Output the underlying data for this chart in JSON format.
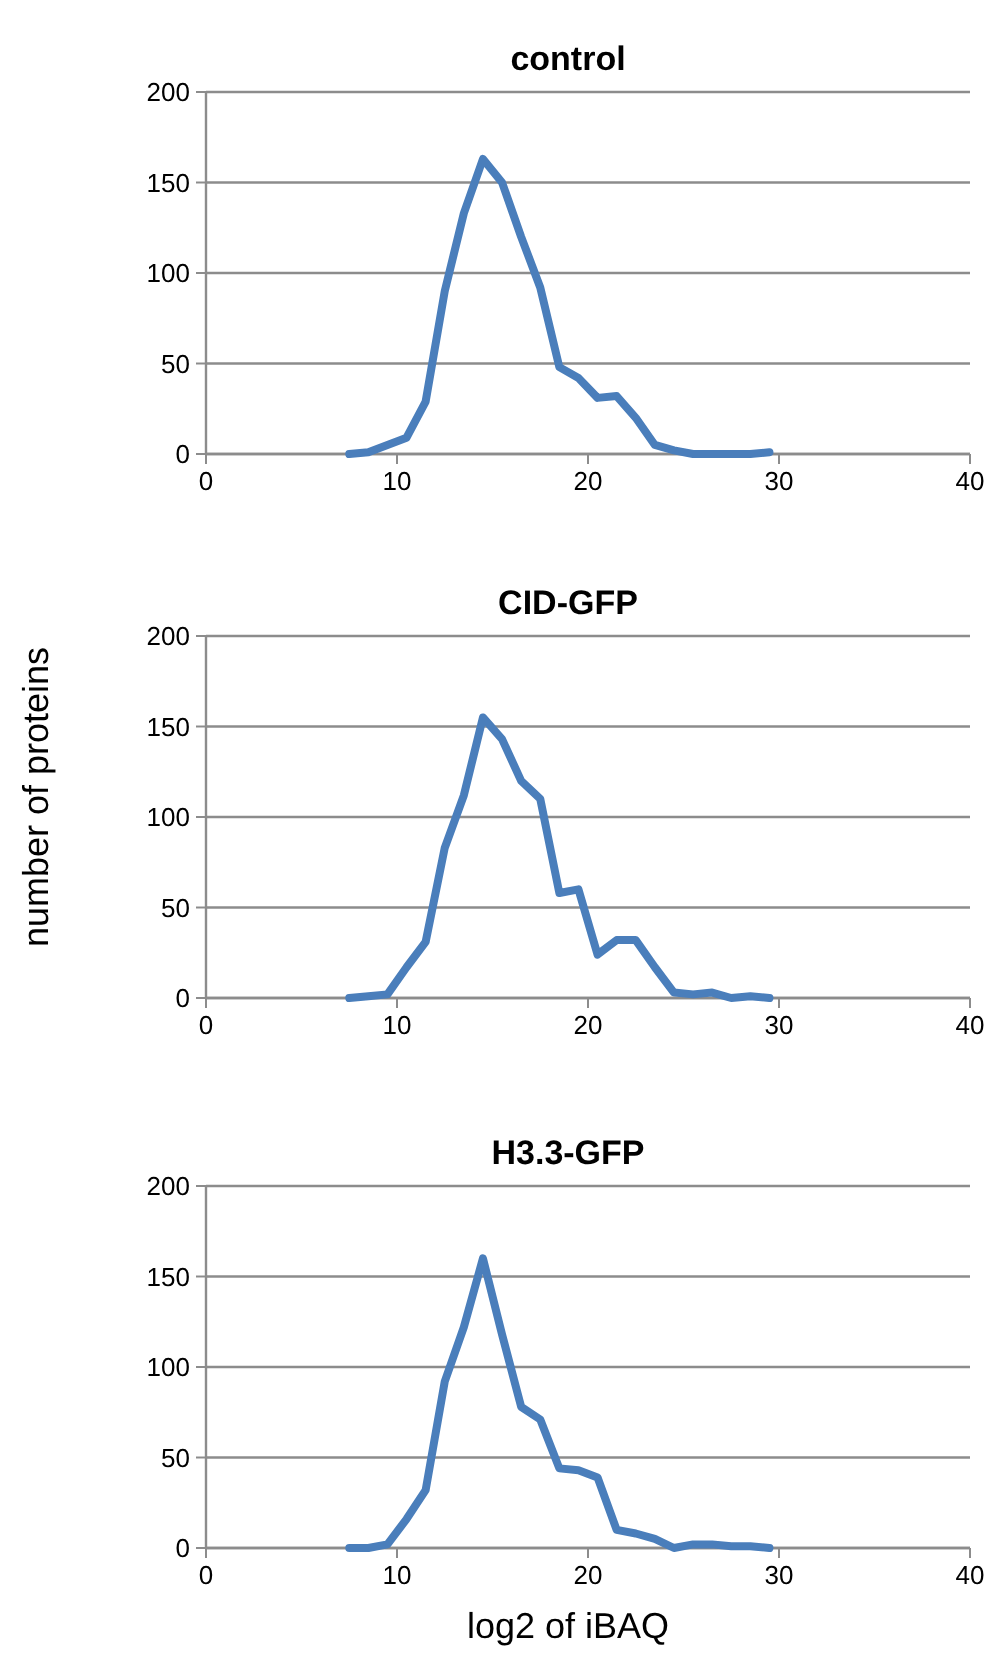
{
  "chart_data": [
    {
      "type": "line",
      "title": "control",
      "x": [
        7.5,
        8.5,
        9.5,
        10.5,
        11.5,
        12.5,
        13.5,
        14.5,
        15.5,
        16.5,
        17.5,
        18.5,
        19.5,
        20.5,
        21.5,
        22.5,
        23.5,
        24.5,
        25.5,
        26.5,
        27.5,
        28.5,
        29.5
      ],
      "series": [
        {
          "color": "#4a7ebb",
          "values": [
            0,
            1,
            5,
            9,
            29,
            90,
            133,
            163,
            150,
            120,
            92,
            48,
            42,
            31,
            32,
            20,
            5,
            2,
            0,
            0,
            0,
            0,
            1
          ]
        }
      ],
      "xlim": [
        0,
        40
      ],
      "xticks": [
        0,
        10,
        20,
        30,
        40
      ],
      "ylim": [
        0,
        200
      ],
      "yticks": [
        0,
        50,
        100,
        150,
        200
      ],
      "grid": "y",
      "marker": "none",
      "line_style": "solid"
    },
    {
      "type": "line",
      "title": "CID-GFP",
      "ylabel": "number of proteins",
      "x": [
        7.5,
        8.5,
        9.5,
        10.5,
        11.5,
        12.5,
        13.5,
        14.5,
        15.5,
        16.5,
        17.5,
        18.5,
        19.5,
        20.5,
        21.5,
        22.5,
        23.5,
        24.5,
        25.5,
        26.5,
        27.5,
        28.5,
        29.5
      ],
      "series": [
        {
          "color": "#4a7ebb",
          "values": [
            0,
            1,
            2,
            17,
            31,
            83,
            112,
            155,
            143,
            120,
            110,
            58,
            60,
            24,
            32,
            32,
            17,
            3,
            2,
            3,
            0,
            1,
            0
          ]
        }
      ],
      "xlim": [
        0,
        40
      ],
      "xticks": [
        0,
        10,
        20,
        30,
        40
      ],
      "ylim": [
        0,
        200
      ],
      "yticks": [
        0,
        50,
        100,
        150,
        200
      ],
      "grid": "y",
      "marker": "none",
      "line_style": "solid"
    },
    {
      "type": "line",
      "title": "H3.3-GFP",
      "xlabel": "log2 of iBAQ",
      "x": [
        7.5,
        8.5,
        9.5,
        10.5,
        11.5,
        12.5,
        13.5,
        14.5,
        15.5,
        16.5,
        17.5,
        18.5,
        19.5,
        20.5,
        21.5,
        22.5,
        23.5,
        24.5,
        25.5,
        26.5,
        27.5,
        28.5,
        29.5
      ],
      "series": [
        {
          "color": "#4a7ebb",
          "values": [
            0,
            0,
            2,
            16,
            32,
            92,
            122,
            160,
            118,
            78,
            71,
            44,
            43,
            39,
            10,
            8,
            5,
            0,
            2,
            2,
            1,
            1,
            0
          ]
        }
      ],
      "xlim": [
        0,
        40
      ],
      "xticks": [
        0,
        10,
        20,
        30,
        40
      ],
      "ylim": [
        0,
        200
      ],
      "yticks": [
        0,
        50,
        100,
        150,
        200
      ],
      "grid": "y",
      "marker": "none",
      "line_style": "solid"
    }
  ]
}
